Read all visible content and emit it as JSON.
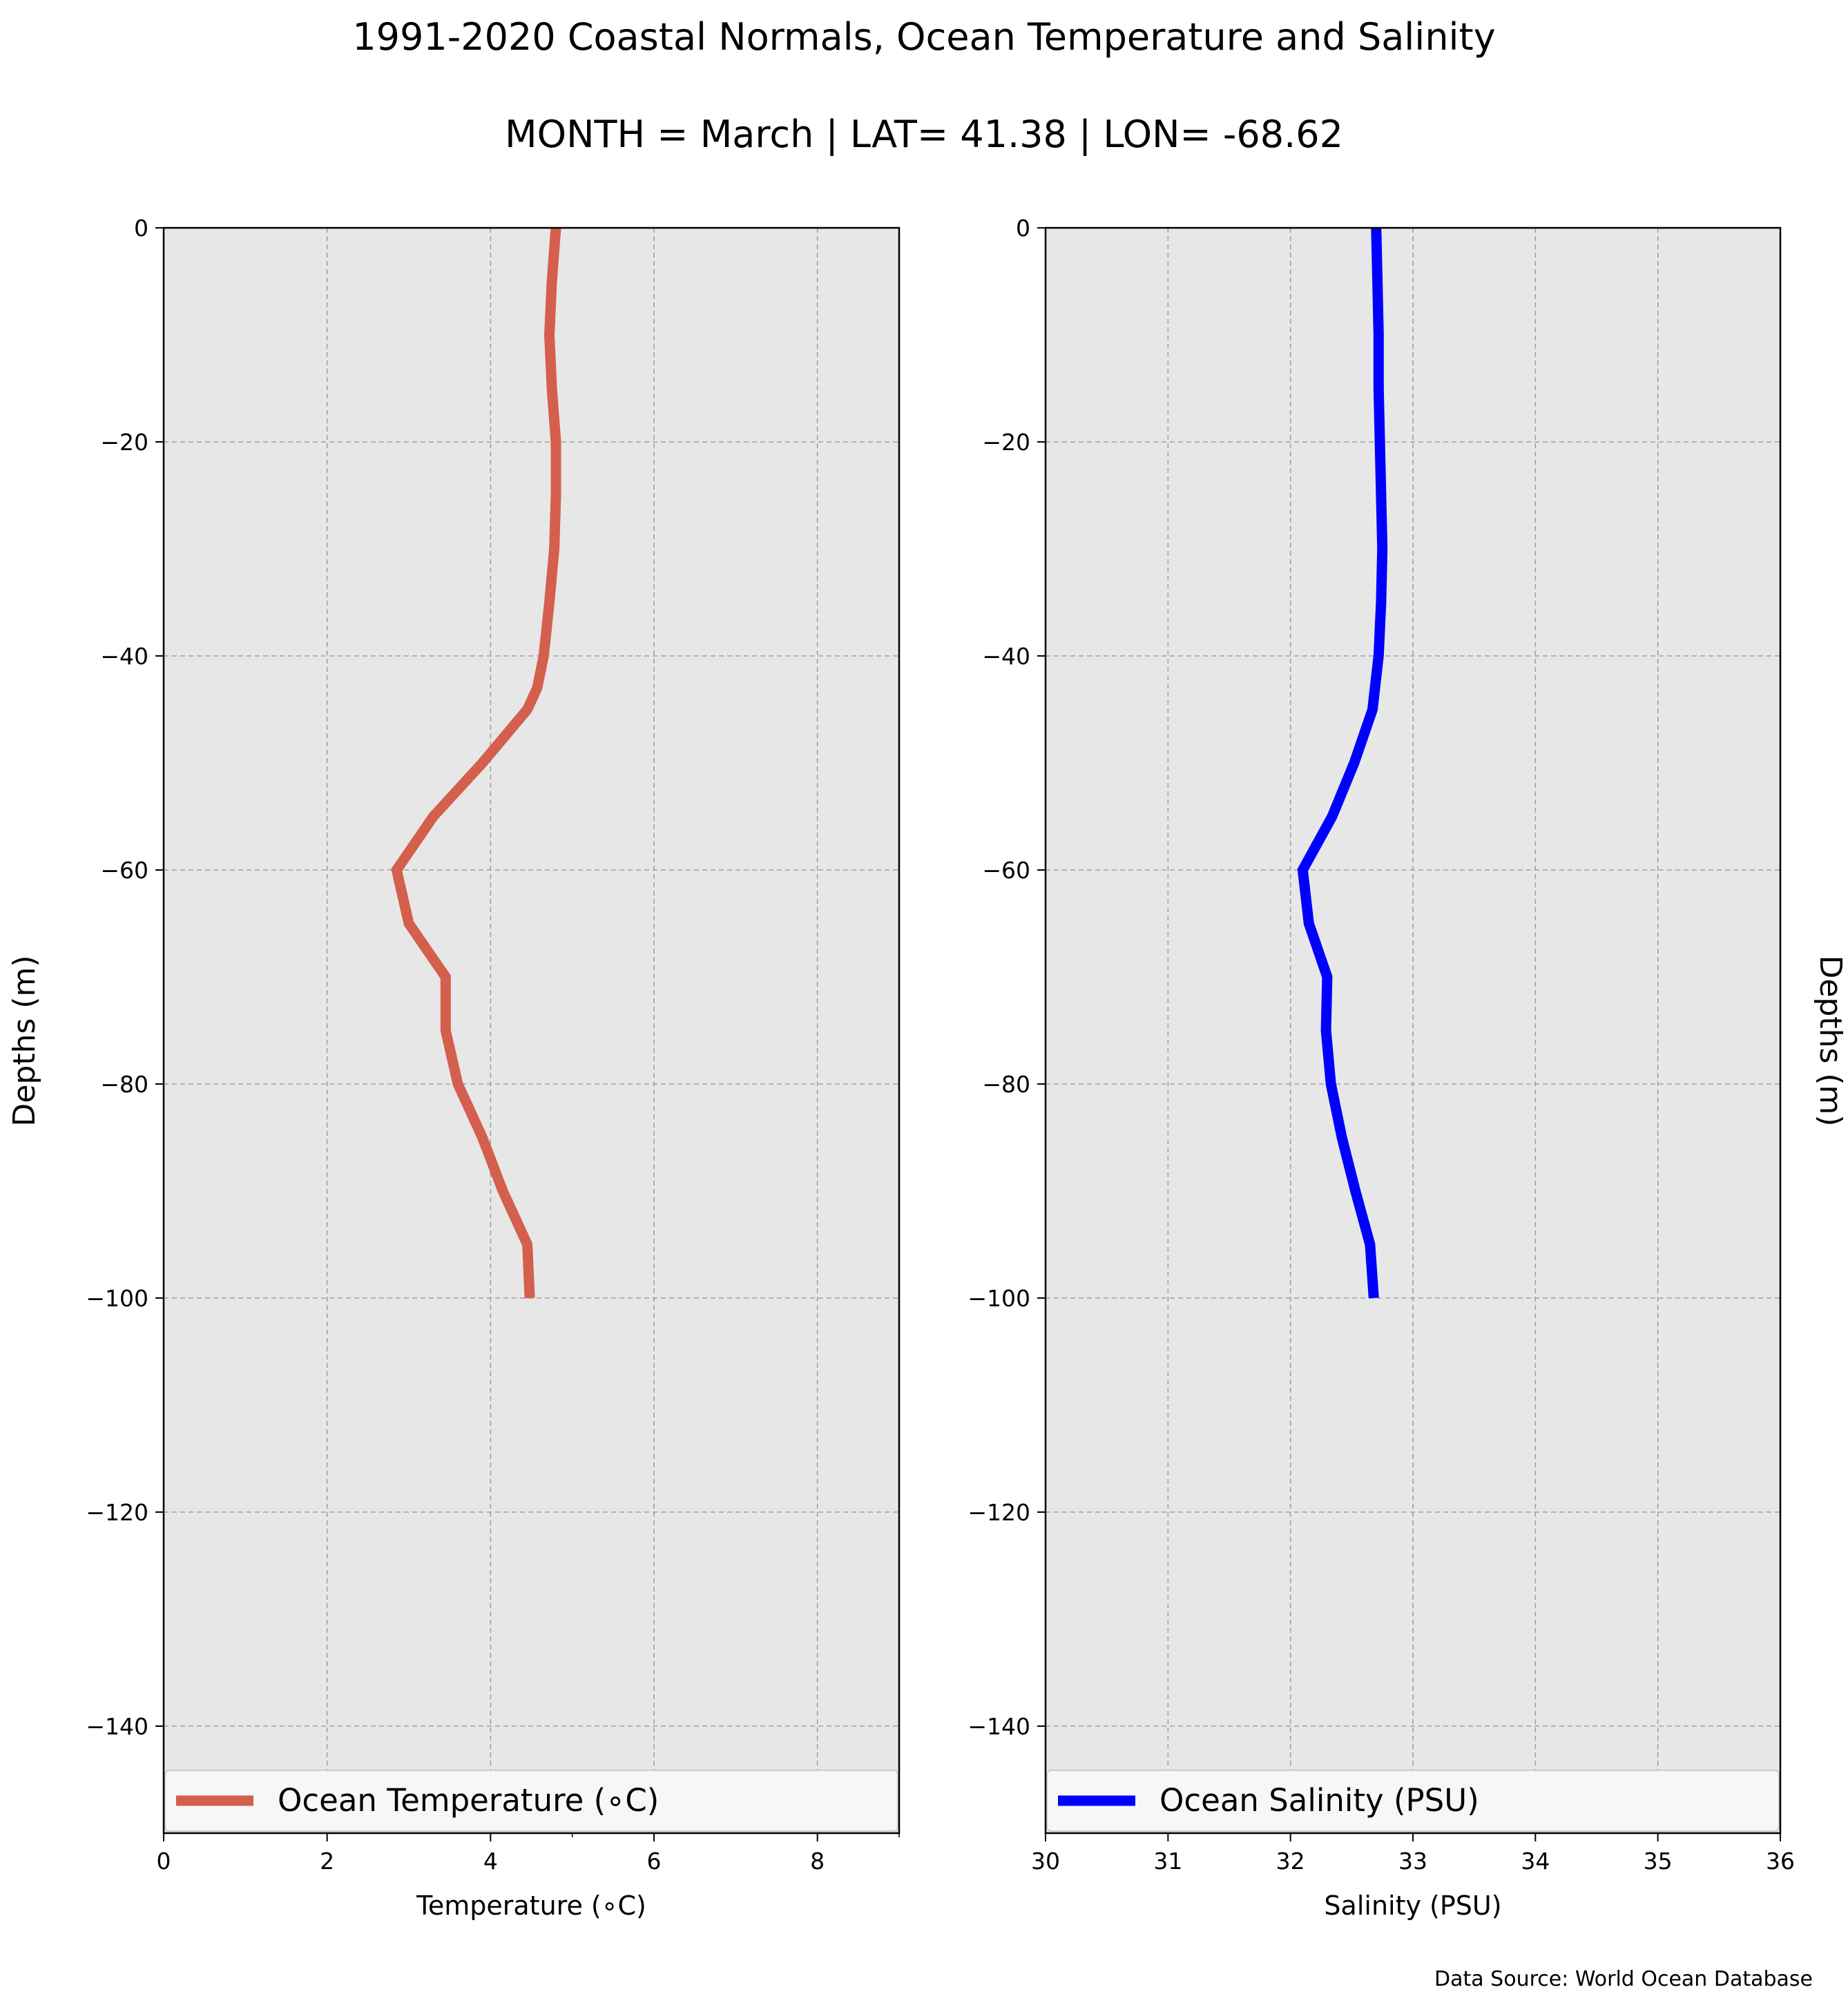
{
  "title": "1991-2020 Coastal Normals, Ocean Temperature and Salinity",
  "subtitle": "MONTH = March | LAT= 41.38 | LON= -68.62",
  "source": "Data Source: World Ocean Database",
  "chart_data": [
    {
      "type": "line",
      "xlabel": "Temperature (∘C)",
      "ylabel": "Depths (m)",
      "xlim": [
        0,
        9
      ],
      "ylim": [
        -150,
        0
      ],
      "xticks": [
        0,
        2,
        4,
        6,
        8
      ],
      "yticks": [
        0,
        -20,
        -40,
        -60,
        -80,
        -100,
        -120,
        -140
      ],
      "grid": true,
      "legend": "bottom",
      "series": [
        {
          "name": "Ocean Temperature (∘C)",
          "color": "#d45f4d",
          "x": [
            4.8,
            4.75,
            4.72,
            4.75,
            4.8,
            4.8,
            4.78,
            4.72,
            4.65,
            4.57,
            4.45,
            3.9,
            3.3,
            2.85,
            3.0,
            3.45,
            3.45,
            3.6,
            3.9,
            4.15,
            4.45,
            4.48
          ],
          "y": [
            0,
            -5,
            -10,
            -15,
            -20,
            -25,
            -30,
            -35,
            -40,
            -43,
            -45,
            -50,
            -55,
            -60,
            -65,
            -70,
            -75,
            -80,
            -85,
            -90,
            -95,
            -100
          ]
        }
      ]
    },
    {
      "type": "line",
      "xlabel": "Salinity (PSU)",
      "ylabel": "Depths (m)",
      "xlim": [
        30,
        36
      ],
      "ylim": [
        -150,
        0
      ],
      "xticks": [
        30,
        31,
        32,
        33,
        34,
        35,
        36
      ],
      "yticks": [
        0,
        -20,
        -40,
        -60,
        -80,
        -100,
        -120,
        -140
      ],
      "grid": true,
      "legend": "bottom",
      "series": [
        {
          "name": "Ocean Salinity (PSU)",
          "color": "#0000ff",
          "x": [
            32.7,
            32.71,
            32.72,
            32.72,
            32.73,
            32.74,
            32.75,
            32.74,
            32.72,
            32.69,
            32.67,
            32.52,
            32.34,
            32.1,
            32.15,
            32.3,
            32.29,
            32.33,
            32.42,
            32.53,
            32.65,
            32.68
          ],
          "y": [
            0,
            -5,
            -10,
            -15,
            -20,
            -25,
            -30,
            -35,
            -40,
            -43,
            -45,
            -50,
            -55,
            -60,
            -65,
            -70,
            -75,
            -80,
            -85,
            -90,
            -95,
            -100
          ]
        }
      ]
    }
  ]
}
